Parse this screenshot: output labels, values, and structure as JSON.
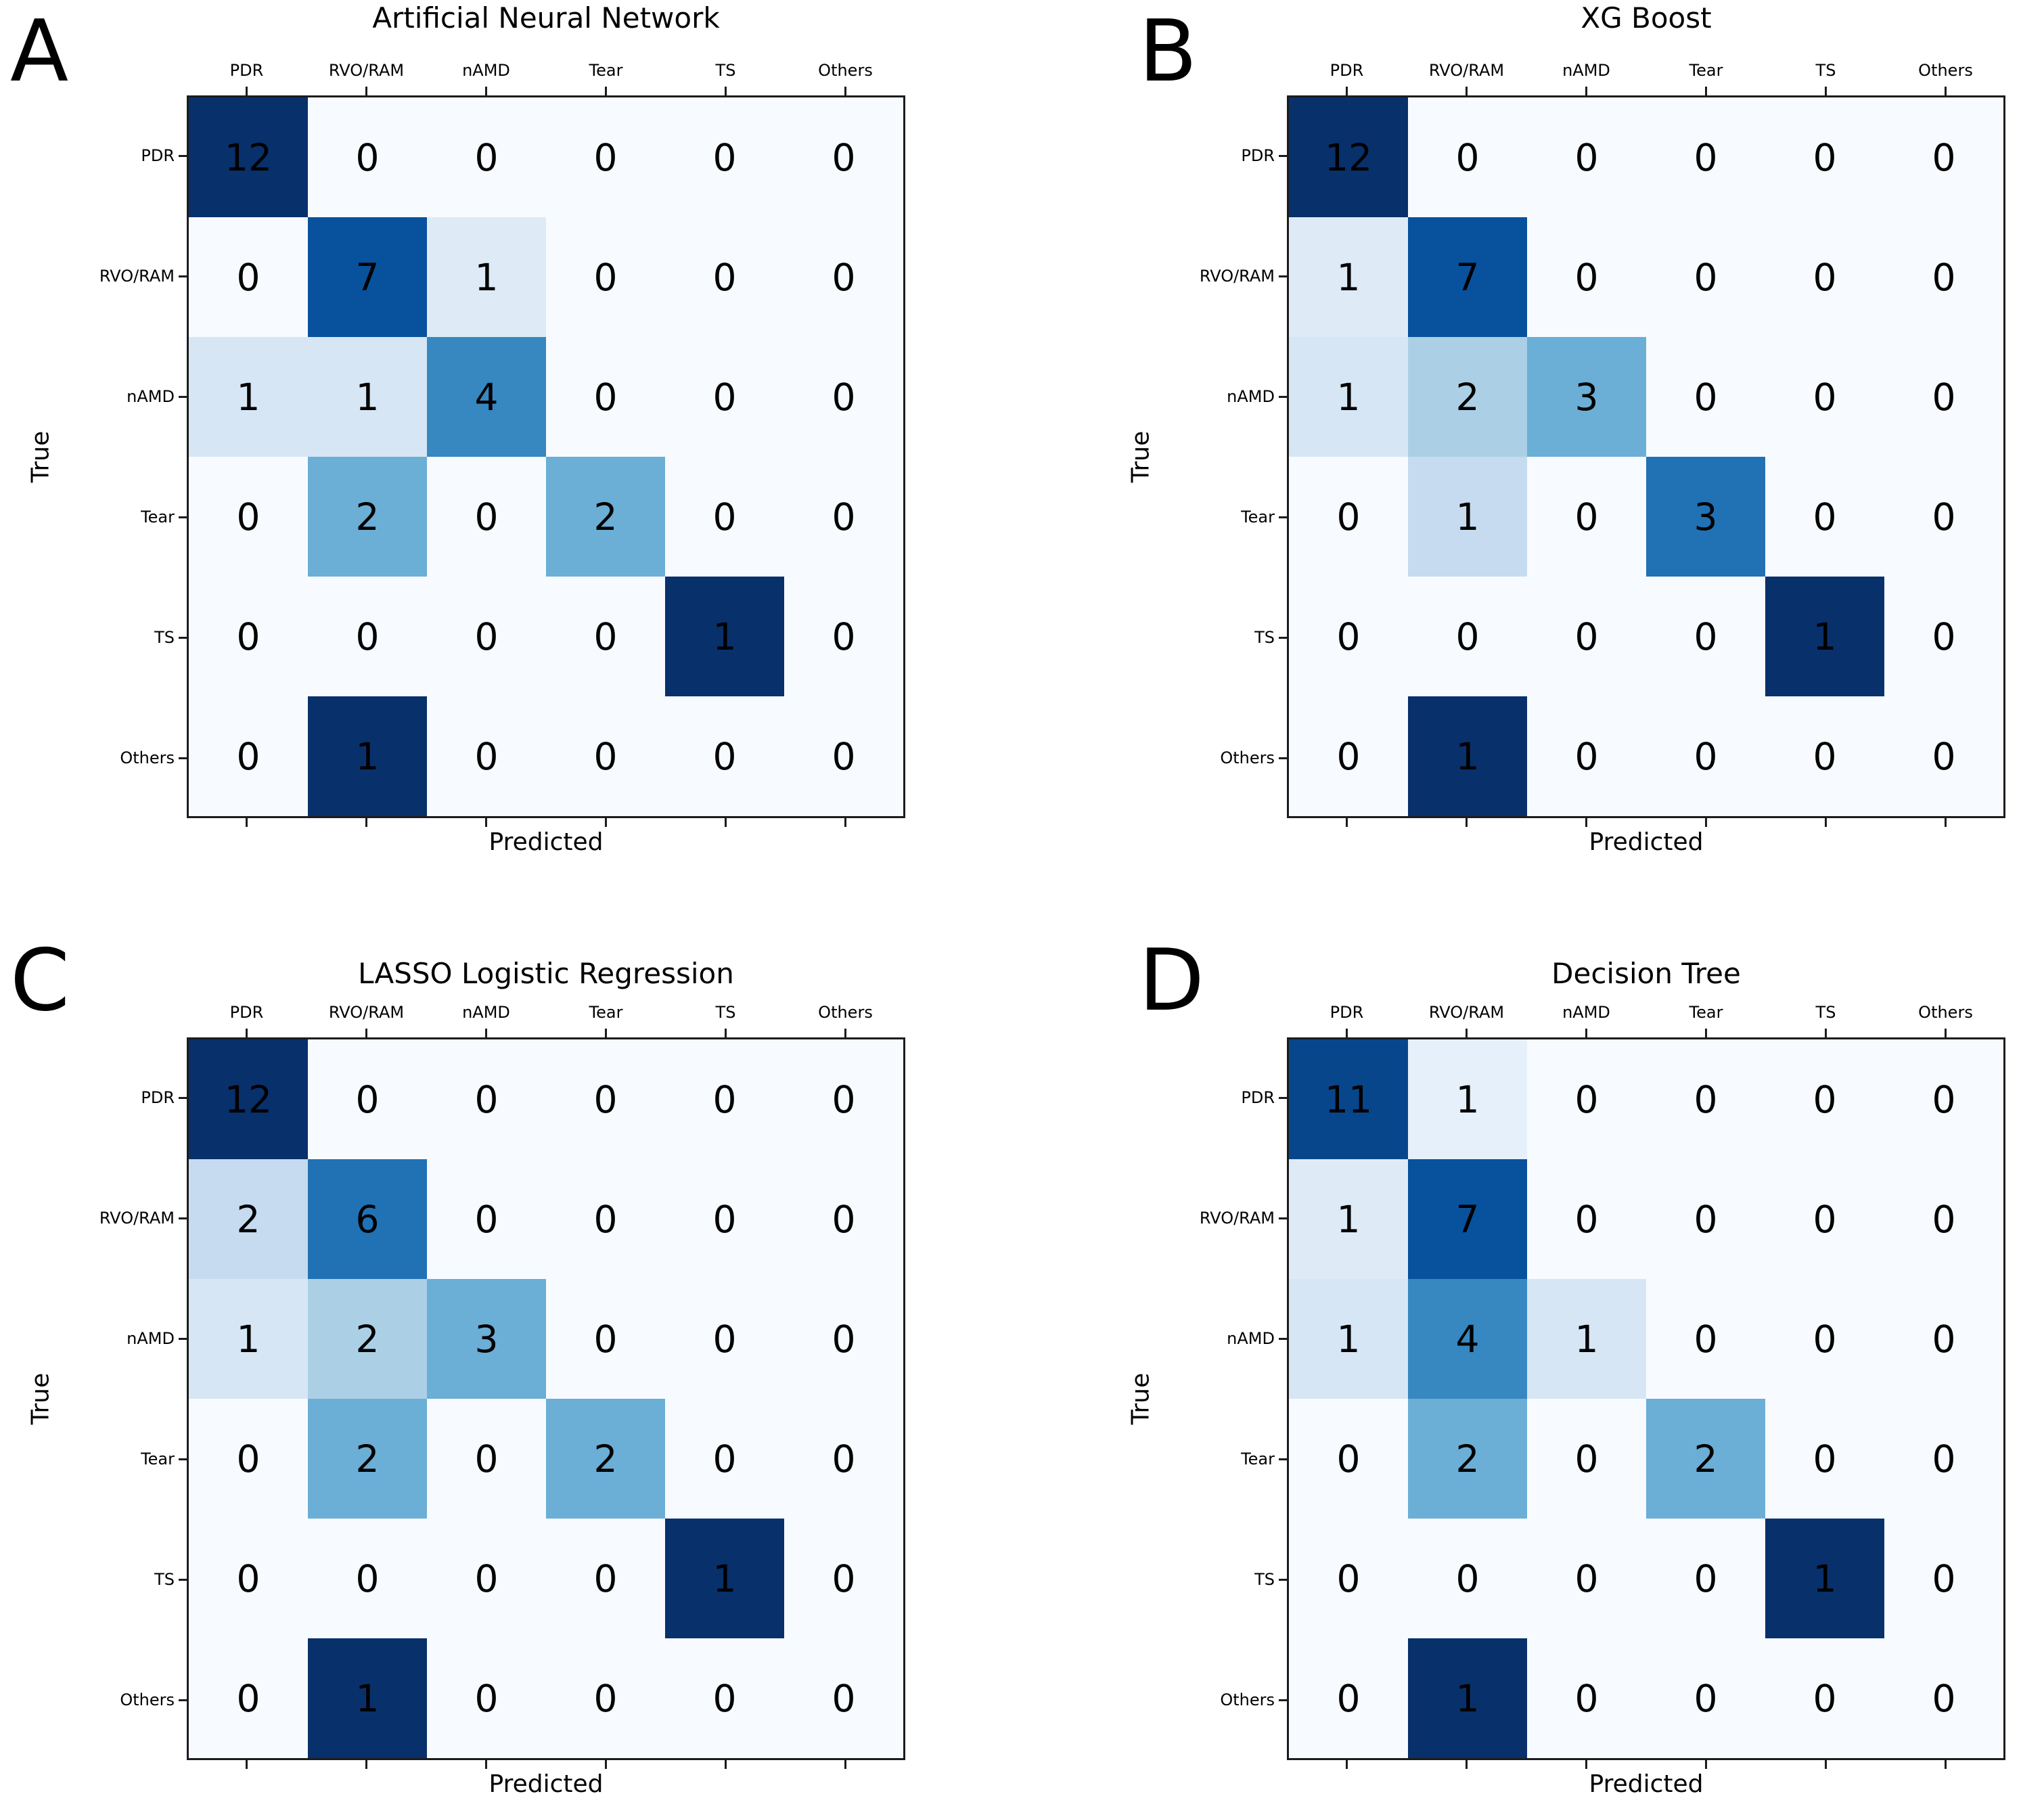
{
  "figure": {
    "background": "#ffffff",
    "xlabel": "Predicted",
    "ylabel": "True",
    "classes": [
      "PDR",
      "RVO/RAM",
      "nAMD",
      "Tear",
      "TS",
      "Others"
    ]
  },
  "colors": {
    "colormap": "Blues",
    "normalization": "per-row-sum",
    "anchors": [
      "#f7fbff",
      "#deebf7",
      "#c6dbef",
      "#9ecae1",
      "#6baed6",
      "#4292c6",
      "#2171b5",
      "#08519c",
      "#08306b"
    ],
    "cell_text": "#000000",
    "axis_text": "#000000",
    "spine": "#1c1c1c"
  },
  "chart_data": [
    {
      "type": "heatmap",
      "panel_label": "A",
      "title": "Artificial Neural Network",
      "xlabel": "Predicted",
      "ylabel": "True",
      "x_categories": [
        "PDR",
        "RVO/RAM",
        "nAMD",
        "Tear",
        "TS",
        "Others"
      ],
      "y_categories": [
        "PDR",
        "RVO/RAM",
        "nAMD",
        "Tear",
        "TS",
        "Others"
      ],
      "values": [
        [
          12,
          0,
          0,
          0,
          0,
          0
        ],
        [
          0,
          7,
          1,
          0,
          0,
          0
        ],
        [
          1,
          1,
          4,
          0,
          0,
          0
        ],
        [
          0,
          2,
          0,
          2,
          0,
          0
        ],
        [
          0,
          0,
          0,
          0,
          1,
          0
        ],
        [
          0,
          1,
          0,
          0,
          0,
          0
        ]
      ],
      "colormap": "Blues",
      "color_normalization": "value divided by row sum",
      "legend": "none",
      "grid": false
    },
    {
      "type": "heatmap",
      "panel_label": "B",
      "title": "XG Boost",
      "xlabel": "Predicted",
      "ylabel": "True",
      "x_categories": [
        "PDR",
        "RVO/RAM",
        "nAMD",
        "Tear",
        "TS",
        "Others"
      ],
      "y_categories": [
        "PDR",
        "RVO/RAM",
        "nAMD",
        "Tear",
        "TS",
        "Others"
      ],
      "values": [
        [
          12,
          0,
          0,
          0,
          0,
          0
        ],
        [
          1,
          7,
          0,
          0,
          0,
          0
        ],
        [
          1,
          2,
          3,
          0,
          0,
          0
        ],
        [
          0,
          1,
          0,
          3,
          0,
          0
        ],
        [
          0,
          0,
          0,
          0,
          1,
          0
        ],
        [
          0,
          1,
          0,
          0,
          0,
          0
        ]
      ],
      "colormap": "Blues",
      "color_normalization": "value divided by row sum",
      "legend": "none",
      "grid": false
    },
    {
      "type": "heatmap",
      "panel_label": "C",
      "title": "LASSO Logistic Regression",
      "xlabel": "Predicted",
      "ylabel": "True",
      "x_categories": [
        "PDR",
        "RVO/RAM",
        "nAMD",
        "Tear",
        "TS",
        "Others"
      ],
      "y_categories": [
        "PDR",
        "RVO/RAM",
        "nAMD",
        "Tear",
        "TS",
        "Others"
      ],
      "values": [
        [
          12,
          0,
          0,
          0,
          0,
          0
        ],
        [
          2,
          6,
          0,
          0,
          0,
          0
        ],
        [
          1,
          2,
          3,
          0,
          0,
          0
        ],
        [
          0,
          2,
          0,
          2,
          0,
          0
        ],
        [
          0,
          0,
          0,
          0,
          1,
          0
        ],
        [
          0,
          1,
          0,
          0,
          0,
          0
        ]
      ],
      "colormap": "Blues",
      "color_normalization": "value divided by row sum",
      "legend": "none",
      "grid": false
    },
    {
      "type": "heatmap",
      "panel_label": "D",
      "title": "Decision Tree",
      "xlabel": "Predicted",
      "ylabel": "True",
      "x_categories": [
        "PDR",
        "RVO/RAM",
        "nAMD",
        "Tear",
        "TS",
        "Others"
      ],
      "y_categories": [
        "PDR",
        "RVO/RAM",
        "nAMD",
        "Tear",
        "TS",
        "Others"
      ],
      "values": [
        [
          11,
          1,
          0,
          0,
          0,
          0
        ],
        [
          1,
          7,
          0,
          0,
          0,
          0
        ],
        [
          1,
          4,
          1,
          0,
          0,
          0
        ],
        [
          0,
          2,
          0,
          2,
          0,
          0
        ],
        [
          0,
          0,
          0,
          0,
          1,
          0
        ],
        [
          0,
          1,
          0,
          0,
          0,
          0
        ]
      ],
      "colormap": "Blues",
      "color_normalization": "value divided by row sum",
      "legend": "none",
      "grid": false
    }
  ]
}
